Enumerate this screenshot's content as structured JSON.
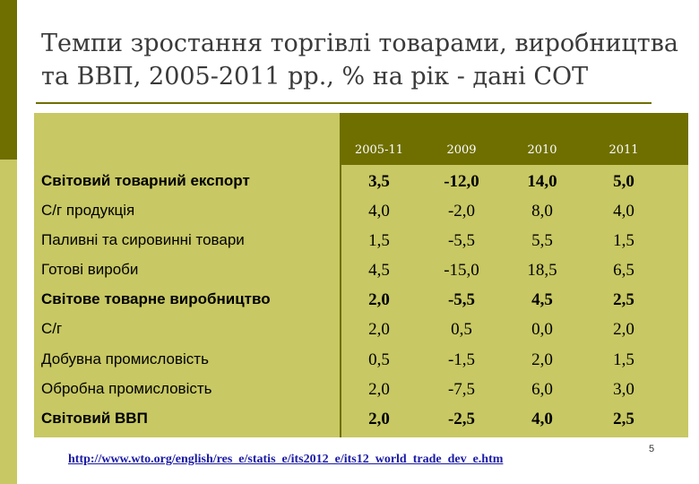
{
  "title": "Темпи зростання торгівлі товарами, виробництва та ВВП, 2005-2011 рр., % на рік - дані СОТ",
  "table": {
    "headers": [
      "2005-11",
      "2009",
      "2010",
      "2011"
    ],
    "rows": [
      {
        "label": "Світовий товарний експорт",
        "values": [
          "3,5",
          "-12,0",
          "14,0",
          "5,0"
        ]
      },
      {
        "label": "С/г продукція",
        "values": [
          "4,0",
          "-2,0",
          "8,0",
          "4,0"
        ]
      },
      {
        "label": "Паливні та сировинні товари",
        "values": [
          "1,5",
          "-5,5",
          "5,5",
          "1,5"
        ]
      },
      {
        "label": "Готові вироби",
        "values": [
          "4,5",
          "-15,0",
          "18,5",
          "6,5"
        ]
      },
      {
        "label": "Світове товарне виробництво",
        "values": [
          "2,0",
          "-5,5",
          "4,5",
          "2,5"
        ]
      },
      {
        "label": "С/г",
        "values": [
          "2,0",
          "0,5",
          "0,0",
          "2,0"
        ]
      },
      {
        "label": "Добувна промисловість",
        "values": [
          "0,5",
          "-1,5",
          "2,0",
          "1,5"
        ]
      },
      {
        "label": "Обробна промисловість",
        "values": [
          "2,0",
          "-7,5",
          "6,0",
          "3,0"
        ]
      },
      {
        "label": "Світовий ВВП",
        "values": [
          "2,0",
          "-2,5",
          "4,0",
          "2,5"
        ]
      }
    ]
  },
  "source_link": "http://www.wto.org/english/res_e/statis_e/its2012_e/its12_world_trade_dev_e.htm",
  "page_number": "5",
  "colors": {
    "dark_olive": "#6f6f00",
    "light_olive": "#c8c864",
    "link": "#1a1aa6"
  }
}
